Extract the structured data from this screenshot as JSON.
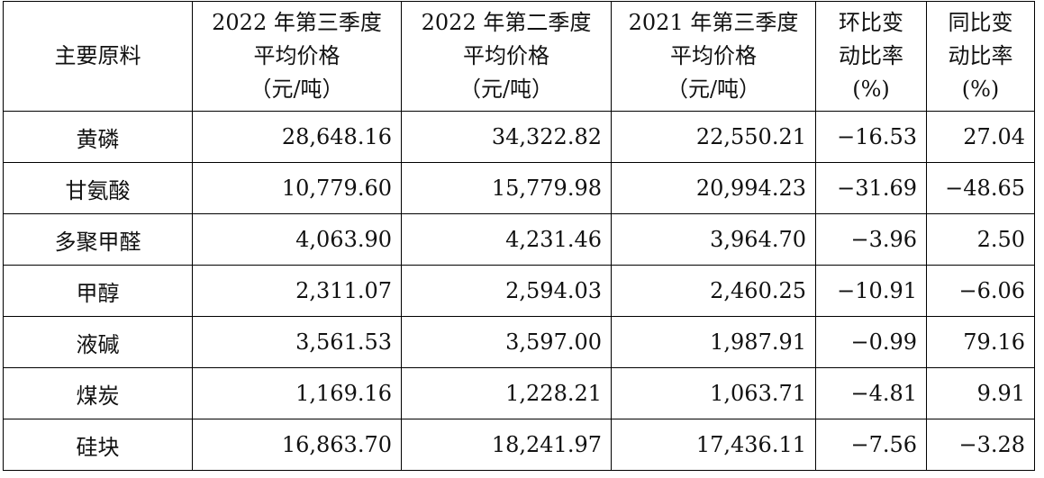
{
  "table": {
    "header": [
      [
        "主要原料"
      ],
      [
        "2022 年第三季度",
        "平均价格",
        "（元/吨）"
      ],
      [
        "2022 年第二季度",
        "平均价格",
        "（元/吨）"
      ],
      [
        "2021 年第三季度",
        "平均价格",
        "（元/吨）"
      ],
      [
        "环比变",
        "动比率",
        "(%)"
      ],
      [
        "同比变",
        "动比率",
        "(%)"
      ]
    ],
    "rows": [
      [
        "黄磷",
        "28,648.16",
        "34,322.82",
        "22,550.21",
        "−16.53",
        "27.04"
      ],
      [
        "甘氨酸",
        "10,779.60",
        "15,779.98",
        "20,994.23",
        "−31.69",
        "−48.65"
      ],
      [
        "多聚甲醛",
        "4,063.90",
        "4,231.46",
        "3,964.70",
        "−3.96",
        "2.50"
      ],
      [
        "甲醇",
        "2,311.07",
        "2,594.03",
        "2,460.25",
        "−10.91",
        "−6.06"
      ],
      [
        "液碱",
        "3,561.53",
        "3,597.00",
        "1,987.91",
        "−0.99",
        "79.16"
      ],
      [
        "煤炭",
        "1,169.16",
        "1,228.21",
        "1,063.71",
        "−4.81",
        "9.91"
      ],
      [
        "硅块",
        "16,863.70",
        "18,241.97",
        "17,436.11",
        "−7.56",
        "−3.28"
      ]
    ]
  }
}
